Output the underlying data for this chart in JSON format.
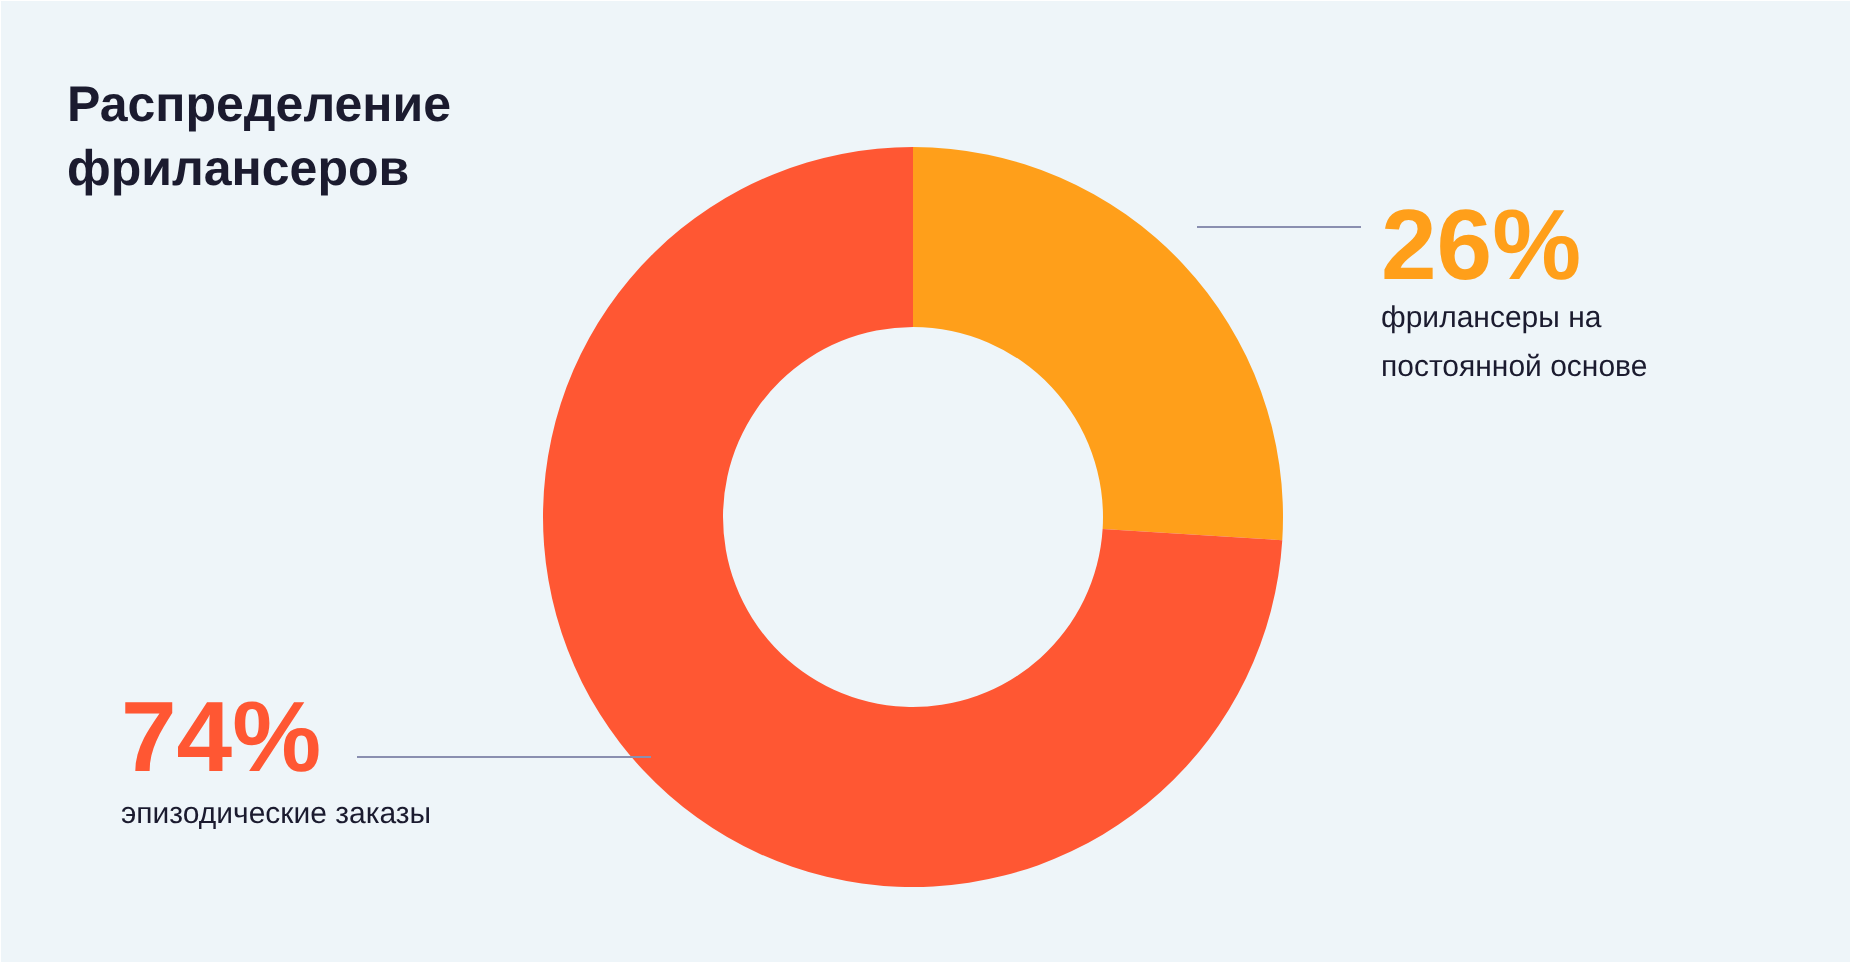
{
  "chart_data": {
    "type": "donut",
    "title": "Распределение фрилансеров",
    "categories": [
      "фрилансеры на постоянной основе",
      "эпизодические заказы"
    ],
    "values": [
      26,
      74
    ],
    "colors": [
      "#ff9f1a",
      "#ff5733"
    ],
    "value_labels": [
      "26%",
      "74%"
    ]
  }
}
